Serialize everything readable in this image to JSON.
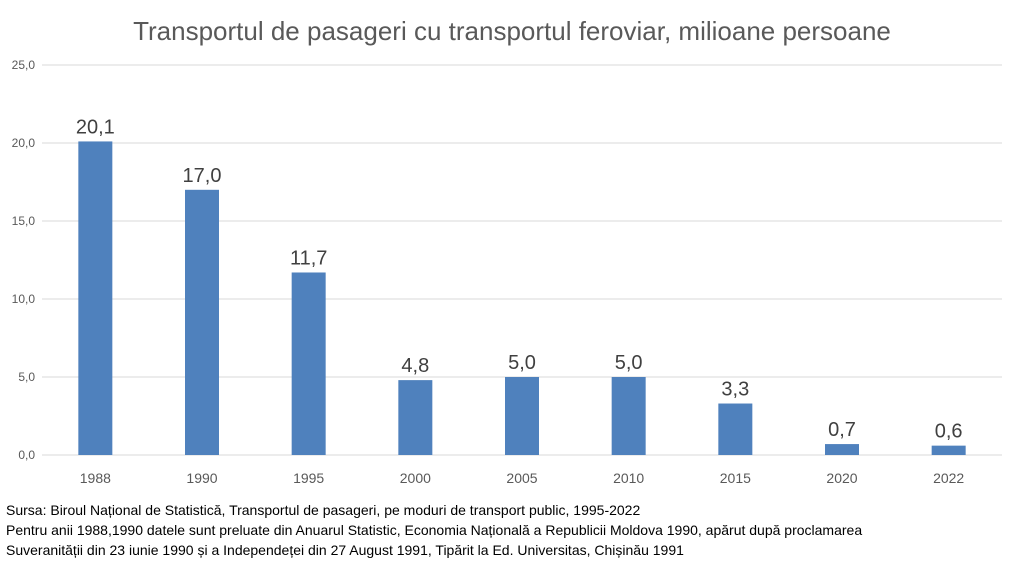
{
  "chart_data": {
    "type": "bar",
    "title": "Transportul de pasageri cu transportul feroviar, milioane persoane",
    "xlabel": "",
    "ylabel": "",
    "categories": [
      "1988",
      "1990",
      "1995",
      "2000",
      "2005",
      "2010",
      "2015",
      "2020",
      "2022"
    ],
    "series": [
      {
        "values": [
          20.1,
          17.0,
          11.7,
          4.8,
          5.0,
          5.0,
          3.3,
          0.7,
          0.6
        ],
        "labels": [
          "20,1",
          "17,0",
          "11,7",
          "4,8",
          "5,0",
          "5,0",
          "3,3",
          "0,7",
          "0,6"
        ],
        "color": "#4f81bd"
      }
    ],
    "ylim": [
      0,
      25
    ],
    "y_ticks": [
      0,
      5,
      10,
      15,
      20,
      25
    ],
    "y_tick_labels": [
      "0,0",
      "5,0",
      "10,0",
      "15,0",
      "20,0",
      "25,0"
    ],
    "grid": true,
    "legend": "none"
  },
  "notes": {
    "source": "Sursa: Biroul Național de Statistică, Transportul de pasageri, pe moduri de transport public, 1995-2022",
    "line2": "Pentru anii 1988,1990 datele sunt preluate din Anuarul Statistic, Economia Națională a Republicii Moldova 1990, apărut după proclamarea",
    "line3": "Suveranității din 23 iunie 1990 și a Independeței din 27 August 1991, Tipărit la Ed. Universitas, Chișinău 1991"
  },
  "colors": {
    "bar": "#4f81bd",
    "grid": "#d9d9d9",
    "text": "#595959"
  }
}
